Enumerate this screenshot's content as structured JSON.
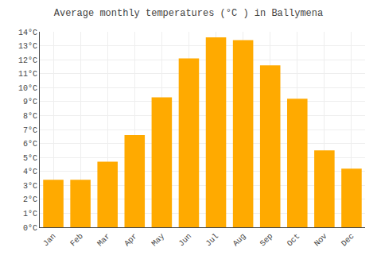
{
  "chart_data": {
    "type": "bar",
    "title": "Average monthly temperatures (°C ) in Ballymena",
    "categories": [
      "Jan",
      "Feb",
      "Mar",
      "Apr",
      "May",
      "Jun",
      "Jul",
      "Aug",
      "Sep",
      "Oct",
      "Nov",
      "Dec"
    ],
    "values": [
      3.4,
      3.4,
      4.7,
      6.6,
      9.3,
      12.1,
      13.6,
      13.4,
      11.6,
      9.2,
      5.5,
      4.2
    ],
    "color": "#FFAA00",
    "ylim": [
      0,
      14
    ],
    "yticks": [
      {
        "value": 0,
        "label": "0°C"
      },
      {
        "value": 1,
        "label": "1°C"
      },
      {
        "value": 2,
        "label": "2°C"
      },
      {
        "value": 3,
        "label": "3°C"
      },
      {
        "value": 4,
        "label": "4°C"
      },
      {
        "value": 5,
        "label": "5°C"
      },
      {
        "value": 6,
        "label": "6°C"
      },
      {
        "value": 7,
        "label": "7°C"
      },
      {
        "value": 8,
        "label": "8°C"
      },
      {
        "value": 9,
        "label": "9°C"
      },
      {
        "value": 10,
        "label": "10°C"
      },
      {
        "value": 11,
        "label": "11°C"
      },
      {
        "value": 12,
        "label": "12°C"
      },
      {
        "value": 13,
        "label": "13°C"
      },
      {
        "value": 14,
        "label": "14°C"
      }
    ],
    "grid": true
  }
}
